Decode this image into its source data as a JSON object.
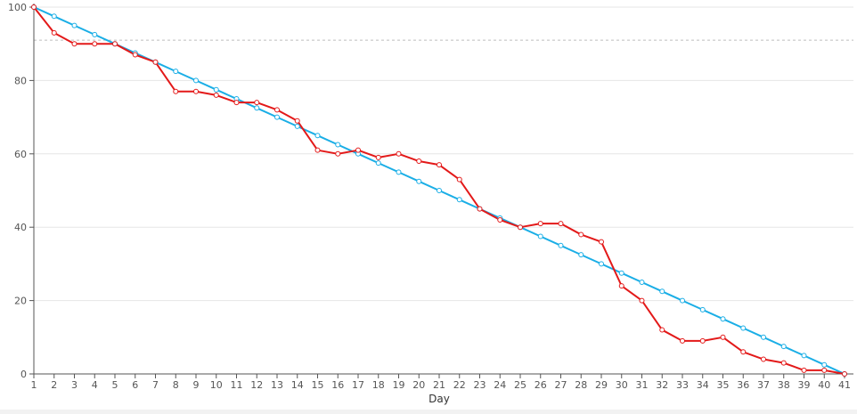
{
  "chart_data": {
    "type": "line",
    "xlabel": "Day",
    "ylabel": "",
    "x": [
      1,
      2,
      3,
      4,
      5,
      6,
      7,
      8,
      9,
      10,
      11,
      12,
      13,
      14,
      15,
      16,
      17,
      18,
      19,
      20,
      21,
      22,
      23,
      24,
      25,
      26,
      27,
      28,
      29,
      30,
      31,
      32,
      33,
      34,
      35,
      36,
      37,
      38,
      39,
      40,
      41
    ],
    "ylim": [
      0,
      100
    ],
    "yticks": [
      0,
      20,
      40,
      60,
      80,
      100
    ],
    "grid": true,
    "reference_line": {
      "y": 91,
      "style": "dashed"
    },
    "series": [
      {
        "role": "ideal",
        "color": "#1aaee6",
        "values": [
          100,
          97.5,
          95,
          92.5,
          90,
          87.5,
          85,
          82.5,
          80,
          77.5,
          75,
          72.5,
          70,
          67.5,
          65,
          62.5,
          60,
          57.5,
          55,
          52.5,
          50,
          47.5,
          45,
          42.5,
          40,
          37.5,
          35,
          32.5,
          30,
          27.5,
          25,
          22.5,
          20,
          17.5,
          15,
          12.5,
          10,
          7.5,
          5,
          2.5,
          0
        ]
      },
      {
        "role": "actual",
        "color": "#e31919",
        "values": [
          100,
          93,
          90,
          90,
          90,
          87,
          85,
          77,
          77,
          76,
          74,
          74,
          72,
          69,
          61,
          60,
          61,
          59,
          60,
          58,
          57,
          53,
          45,
          42,
          40,
          41,
          41,
          38,
          36,
          24,
          20,
          12,
          9,
          9,
          10,
          6,
          4,
          3,
          1,
          1,
          0
        ]
      }
    ]
  }
}
